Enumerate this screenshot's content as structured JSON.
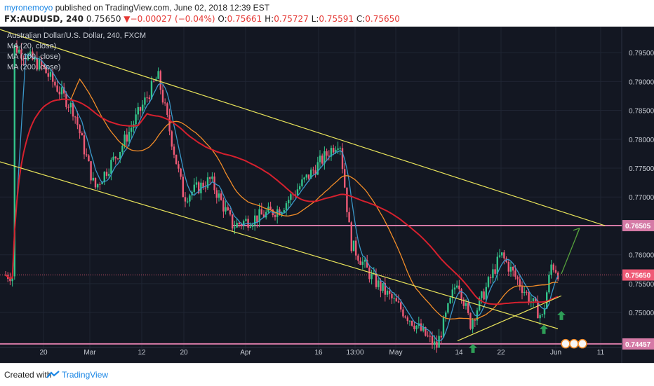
{
  "header": {
    "author": "myronemoyo",
    "published": "published on TradingView.com, June 02, 2018 12:39 EST",
    "symbol": "FX:AUDUSD, 240",
    "last": "0.75650",
    "change": "−0.00027 (−0.04%)",
    "open_label": "O:",
    "open": "0.75661",
    "high_label": "H:",
    "high": "0.75727",
    "low_label": "L:",
    "low": "0.75591",
    "close_label": "C:",
    "close": "0.75650"
  },
  "legend": {
    "instrument": "Australian Dollar/U.S. Dollar, 240, FXCM",
    "ma20": "MA (20, close)",
    "ma100": "MA (100, close)",
    "ma200": "MA (200, close)"
  },
  "footer": {
    "created": "Created with",
    "brand": "TradingView"
  },
  "colors": {
    "background": "#131722",
    "grid": "#1f2533",
    "up": "#33c48a",
    "down": "#ef5a76",
    "ma20": "#3a97c9",
    "ma100": "#f28c28",
    "ma200": "#d6202e",
    "channel": "#e8e35a",
    "hline": "#d57aa6",
    "arrow_up": "#2e9e57",
    "projection": "#55a03c"
  },
  "chart_data": {
    "type": "candlestick",
    "title": "Australian Dollar/U.S. Dollar, 240, FXCM",
    "ylim": [
      0.7425,
      0.7995
    ],
    "y_ticks": [
      "0.79500",
      "0.79000",
      "0.78500",
      "0.78000",
      "0.77500",
      "0.77000",
      "0.76000",
      "0.75500",
      "0.75000"
    ],
    "x_ticks": [
      "20",
      "Mar",
      "12",
      "20",
      "Apr",
      "16",
      "13:00",
      "May",
      "14",
      "22",
      "Jun",
      "11"
    ],
    "price_labels": [
      {
        "text": "0.76505",
        "value": 0.76505,
        "color": "#d57aa6"
      },
      {
        "text": "0.75650",
        "value": 0.7565,
        "color": "#ef5a76"
      },
      {
        "text": "0.74457",
        "value": 0.74457,
        "color": "#d57aa6"
      }
    ],
    "horizontal_levels": [
      0.76505,
      0.74457
    ],
    "last_price": 0.7565,
    "key_points": [
      {
        "date": "Feb 15",
        "price": 0.796
      },
      {
        "date": "Feb 20",
        "price": 0.7925
      },
      {
        "date": "Feb 26",
        "price": 0.785
      },
      {
        "date": "Mar 1",
        "price": 0.7715
      },
      {
        "date": "Mar 7",
        "price": 0.778
      },
      {
        "date": "Mar 14",
        "price": 0.791
      },
      {
        "date": "Mar 19",
        "price": 0.77
      },
      {
        "date": "Mar 26",
        "price": 0.773
      },
      {
        "date": "Apr 2",
        "price": 0.765
      },
      {
        "date": "Apr 10",
        "price": 0.768
      },
      {
        "date": "Apr 19",
        "price": 0.78
      },
      {
        "date": "Apr 24",
        "price": 0.762
      },
      {
        "date": "Apr 28",
        "price": 0.756
      },
      {
        "date": "May 9",
        "price": 0.744
      },
      {
        "date": "May 14",
        "price": 0.756
      },
      {
        "date": "May 17",
        "price": 0.748
      },
      {
        "date": "May 22",
        "price": 0.76
      },
      {
        "date": "May 29",
        "price": 0.749
      },
      {
        "date": "May 31",
        "price": 0.7585
      },
      {
        "date": "Jun 1",
        "price": 0.7565
      }
    ],
    "moving_averages": [
      "MA (20, close)",
      "MA (100, close)",
      "MA (200, close)"
    ]
  }
}
